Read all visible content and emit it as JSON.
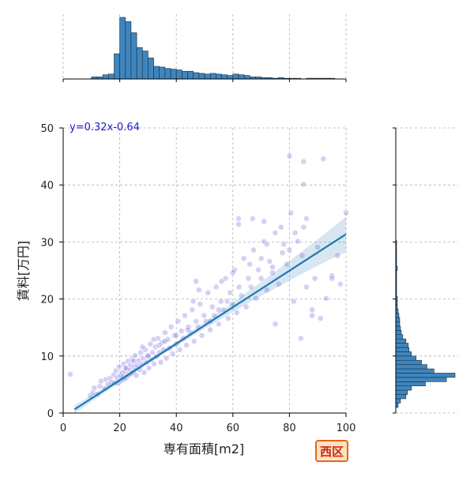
{
  "chart_data": {
    "type": "scatter",
    "title": "",
    "xlabel": "専有面積[m2]",
    "ylabel": "賃料[万円]",
    "xlim": [
      0,
      100
    ],
    "ylim": [
      0,
      50
    ],
    "x_ticks": [
      "0",
      "20",
      "40",
      "60",
      "80",
      "100"
    ],
    "y_ticks": [
      "0",
      "10",
      "20",
      "30",
      "40",
      "50"
    ],
    "grid": true,
    "regression": {
      "label": "y=0.32x-0.64",
      "slope": 0.32,
      "intercept": -0.64,
      "x_range": [
        4,
        100
      ]
    },
    "region_label": "西区",
    "point_color": "#3a2fd0",
    "line_color": "#1f77b4",
    "hist_color": "#3f86bf",
    "top_histogram": {
      "bin_edges_start": 10,
      "bin_width": 2,
      "counts": [
        3,
        3,
        6,
        7,
        36,
        88,
        82,
        66,
        45,
        40,
        30,
        18,
        17,
        15,
        14,
        13,
        11,
        11,
        9,
        8,
        7,
        8,
        7,
        6,
        5,
        7,
        6,
        5,
        3,
        3,
        2,
        2,
        1,
        2,
        1,
        1,
        1,
        0,
        1,
        1,
        1,
        1,
        1
      ]
    },
    "right_histogram": {
      "bin_edges_start": 1,
      "bin_width": 0.75,
      "counts": [
        3,
        6,
        13,
        15,
        20,
        38,
        65,
        76,
        49,
        40,
        33,
        26,
        20,
        17,
        16,
        13,
        9,
        7,
        6,
        5,
        5,
        4,
        3,
        2,
        2,
        2,
        1,
        1,
        1,
        1,
        1,
        1,
        2,
        1,
        1,
        1,
        1,
        1,
        1
      ]
    },
    "points": [
      [
        9.5,
        3.1
      ],
      [
        10.5,
        3.6
      ],
      [
        11,
        4.4
      ],
      [
        12.2,
        3.3
      ],
      [
        13,
        4.7
      ],
      [
        13.4,
        5.6
      ],
      [
        14.6,
        4.3
      ],
      [
        15.1,
        5.9
      ],
      [
        15.8,
        5.1
      ],
      [
        16.6,
        6.1
      ],
      [
        17.1,
        5.4
      ],
      [
        17.9,
        6.7
      ],
      [
        18.2,
        5.3
      ],
      [
        18.6,
        7.4
      ],
      [
        19.1,
        6.2
      ],
      [
        19.3,
        5.2
      ],
      [
        19.8,
        8.1
      ],
      [
        20.2,
        6.6
      ],
      [
        20.4,
        5.6
      ],
      [
        20.8,
        7.1
      ],
      [
        21.1,
        6.4
      ],
      [
        21.4,
        8.6
      ],
      [
        21.6,
        5.9
      ],
      [
        22,
        7.3
      ],
      [
        22.3,
        6.2
      ],
      [
        22.6,
        7.9
      ],
      [
        22.9,
        9.1
      ],
      [
        23.2,
        6.6
      ],
      [
        23.5,
        7.6
      ],
      [
        23.8,
        8.4
      ],
      [
        24.1,
        6.9
      ],
      [
        24.4,
        9.4
      ],
      [
        24.8,
        7.2
      ],
      [
        25.1,
        8.1
      ],
      [
        25.4,
        10.1
      ],
      [
        25.8,
        6.6
      ],
      [
        26.2,
        8.4
      ],
      [
        26.6,
        9.2
      ],
      [
        27,
        7.6
      ],
      [
        27.4,
        10.6
      ],
      [
        27.8,
        8.6
      ],
      [
        28.2,
        9.6
      ],
      [
        28.6,
        7.1
      ],
      [
        29,
        11.1
      ],
      [
        29.4,
        8.9
      ],
      [
        29.9,
        9.9
      ],
      [
        30.3,
        7.9
      ],
      [
        30.8,
        12.1
      ],
      [
        31.2,
        9.4
      ],
      [
        31.6,
        10.6
      ],
      [
        32.1,
        8.6
      ],
      [
        32.6,
        11.6
      ],
      [
        33,
        9.9
      ],
      [
        33.5,
        13.1
      ],
      [
        34,
        10.6
      ],
      [
        34.5,
        8.9
      ],
      [
        35,
        12.4
      ],
      [
        35.5,
        11.1
      ],
      [
        36,
        14.1
      ],
      [
        36.5,
        9.6
      ],
      [
        37,
        12.9
      ],
      [
        37.6,
        11.4
      ],
      [
        38.2,
        15.1
      ],
      [
        38.7,
        10.4
      ],
      [
        39.3,
        13.6
      ],
      [
        40,
        12.1
      ],
      [
        40.6,
        16.1
      ],
      [
        41.2,
        11.1
      ],
      [
        41.8,
        14.4
      ],
      [
        42.4,
        13.1
      ],
      [
        43,
        17.1
      ],
      [
        43.6,
        11.9
      ],
      [
        44.3,
        15.1
      ],
      [
        45,
        14.1
      ],
      [
        45.6,
        18.1
      ],
      [
        46.3,
        12.6
      ],
      [
        47,
        16.1
      ],
      [
        47.7,
        15.1
      ],
      [
        48.4,
        19.1
      ],
      [
        49,
        13.6
      ],
      [
        49.8,
        17.1
      ],
      [
        50.5,
        16.1
      ],
      [
        51.2,
        21.1
      ],
      [
        52,
        14.6
      ],
      [
        52.7,
        18.6
      ],
      [
        53.4,
        17.1
      ],
      [
        54.1,
        22.1
      ],
      [
        55,
        15.6
      ],
      [
        55.8,
        19.6
      ],
      [
        56.6,
        18.1
      ],
      [
        57.4,
        23.6
      ],
      [
        58.3,
        16.6
      ],
      [
        59,
        21.1
      ],
      [
        59.8,
        19.1
      ],
      [
        60.6,
        25.1
      ],
      [
        61.4,
        17.6
      ],
      [
        62.2,
        22.1
      ],
      [
        63,
        20.6
      ],
      [
        63.9,
        27.1
      ],
      [
        64.7,
        18.6
      ],
      [
        65.5,
        23.6
      ],
      [
        66.4,
        22.1
      ],
      [
        67.3,
        28.6
      ],
      [
        68.2,
        20.1
      ],
      [
        69,
        25.1
      ],
      [
        70,
        23.6
      ],
      [
        71,
        30.1
      ],
      [
        72,
        21.6
      ],
      [
        73,
        26.6
      ],
      [
        74,
        24.6
      ],
      [
        75,
        31.6
      ],
      [
        76.2,
        22.6
      ],
      [
        77.5,
        28.1
      ],
      [
        79,
        26.1
      ],
      [
        80.5,
        35.1
      ],
      [
        81.5,
        19.6
      ],
      [
        83,
        30.1
      ],
      [
        84.5,
        27.6
      ],
      [
        86,
        22.1
      ],
      [
        88,
        17.1
      ],
      [
        90,
        29.1
      ],
      [
        92,
        44.6
      ],
      [
        95,
        24.1
      ],
      [
        98,
        22.6
      ],
      [
        100,
        35.1
      ],
      [
        2.5,
        6.8
      ],
      [
        67,
        34.1
      ],
      [
        80,
        45.1
      ],
      [
        85,
        44.1
      ],
      [
        85,
        40.1
      ],
      [
        71,
        33.6
      ],
      [
        62,
        34.1
      ],
      [
        56,
        23.1
      ],
      [
        47,
        23.1
      ],
      [
        75,
        15.6
      ],
      [
        84,
        13.1
      ],
      [
        88,
        18.1
      ],
      [
        91,
        16.6
      ],
      [
        95,
        23.6
      ],
      [
        62,
        33.1
      ],
      [
        77,
        32.6
      ],
      [
        80,
        28.6
      ],
      [
        85,
        32.6
      ],
      [
        72,
        29.6
      ],
      [
        58,
        19.6
      ],
      [
        52,
        16.1
      ],
      [
        48,
        21.6
      ],
      [
        40,
        13.6
      ],
      [
        36,
        12.6
      ],
      [
        32,
        12.9
      ],
      [
        28,
        11.6
      ],
      [
        25,
        9.1
      ],
      [
        22,
        7.9
      ],
      [
        30,
        10.1
      ],
      [
        34,
        11.9
      ],
      [
        44,
        14.6
      ],
      [
        46,
        19.6
      ],
      [
        55,
        18.1
      ],
      [
        60,
        24.6
      ],
      [
        66,
        26.1
      ],
      [
        70,
        27.1
      ],
      [
        74,
        25.6
      ],
      [
        78,
        29.6
      ],
      [
        82,
        31.6
      ],
      [
        86,
        34.1
      ],
      [
        89,
        23.6
      ],
      [
        93,
        20.1
      ],
      [
        97,
        27.6
      ]
    ]
  }
}
